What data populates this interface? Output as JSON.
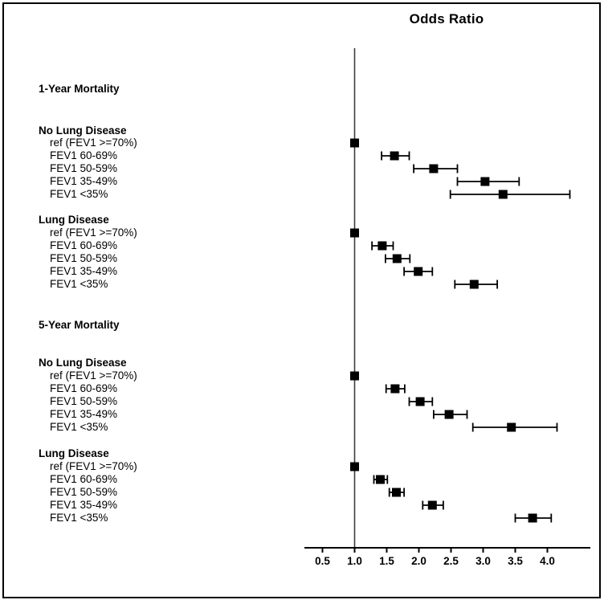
{
  "chart_data": {
    "type": "forest",
    "title": "Odds Ratio",
    "x_axis": {
      "ticks": [
        0.5,
        1.0,
        1.5,
        2.0,
        2.5,
        3.0,
        3.5,
        4.0
      ],
      "tick_labels": [
        "0.5",
        "1.0",
        "1.5",
        "2.0",
        "2.5",
        "3.0",
        "3.5",
        "4.0"
      ],
      "reference_line": 1.0,
      "range_shown": [
        0.22,
        4.67
      ]
    },
    "marker_color": "#000000",
    "sections": [
      {
        "label": "1-Year Mortality",
        "groups": [
          {
            "label": "No Lung Disease",
            "rows": [
              {
                "label": "ref (FEV1 >=70%)",
                "or": 1.0,
                "is_reference": true
              },
              {
                "label": "FEV1 60-69%",
                "or": 1.62,
                "ci_low": 1.42,
                "ci_high": 1.85
              },
              {
                "label": "FEV1 50-59%",
                "or": 2.23,
                "ci_low": 1.92,
                "ci_high": 2.6
              },
              {
                "label": "FEV1 35-49%",
                "or": 3.03,
                "ci_low": 2.6,
                "ci_high": 3.56
              },
              {
                "label": "FEV1 <35%",
                "or": 3.31,
                "ci_low": 2.49,
                "ci_high": 4.35
              }
            ]
          },
          {
            "label": "Lung Disease",
            "rows": [
              {
                "label": "ref (FEV1 >=70%)",
                "or": 1.0,
                "is_reference": true
              },
              {
                "label": "FEV1 60-69%",
                "or": 1.43,
                "ci_low": 1.27,
                "ci_high": 1.6
              },
              {
                "label": "FEV1 50-59%",
                "or": 1.66,
                "ci_low": 1.48,
                "ci_high": 1.86
              },
              {
                "label": "FEV1 35-49%",
                "or": 1.99,
                "ci_low": 1.77,
                "ci_high": 2.21
              },
              {
                "label": "FEV1 <35%",
                "or": 2.86,
                "ci_low": 2.56,
                "ci_high": 3.22
              }
            ]
          }
        ]
      },
      {
        "label": "5-Year Mortality",
        "groups": [
          {
            "label": "No Lung Disease",
            "rows": [
              {
                "label": "ref (FEV1 >=70%)",
                "or": 1.0,
                "is_reference": true
              },
              {
                "label": "FEV1 60-69%",
                "or": 1.63,
                "ci_low": 1.49,
                "ci_high": 1.78
              },
              {
                "label": "FEV1 50-59%",
                "or": 2.02,
                "ci_low": 1.85,
                "ci_high": 2.21
              },
              {
                "label": "FEV1 35-49%",
                "or": 2.47,
                "ci_low": 2.23,
                "ci_high": 2.75
              },
              {
                "label": "FEV1 <35%",
                "or": 3.44,
                "ci_low": 2.84,
                "ci_high": 4.15
              }
            ]
          },
          {
            "label": "Lung Disease",
            "rows": [
              {
                "label": "ref (FEV1 >=70%)",
                "or": 1.0,
                "is_reference": true
              },
              {
                "label": "FEV1 60-69%",
                "or": 1.4,
                "ci_low": 1.3,
                "ci_high": 1.51
              },
              {
                "label": "FEV1 50-59%",
                "or": 1.65,
                "ci_low": 1.54,
                "ci_high": 1.77
              },
              {
                "label": "FEV1 35-49%",
                "or": 2.21,
                "ci_low": 2.06,
                "ci_high": 2.38
              },
              {
                "label": "FEV1 <35%",
                "or": 3.77,
                "ci_low": 3.5,
                "ci_high": 4.06
              }
            ]
          }
        ]
      }
    ]
  }
}
